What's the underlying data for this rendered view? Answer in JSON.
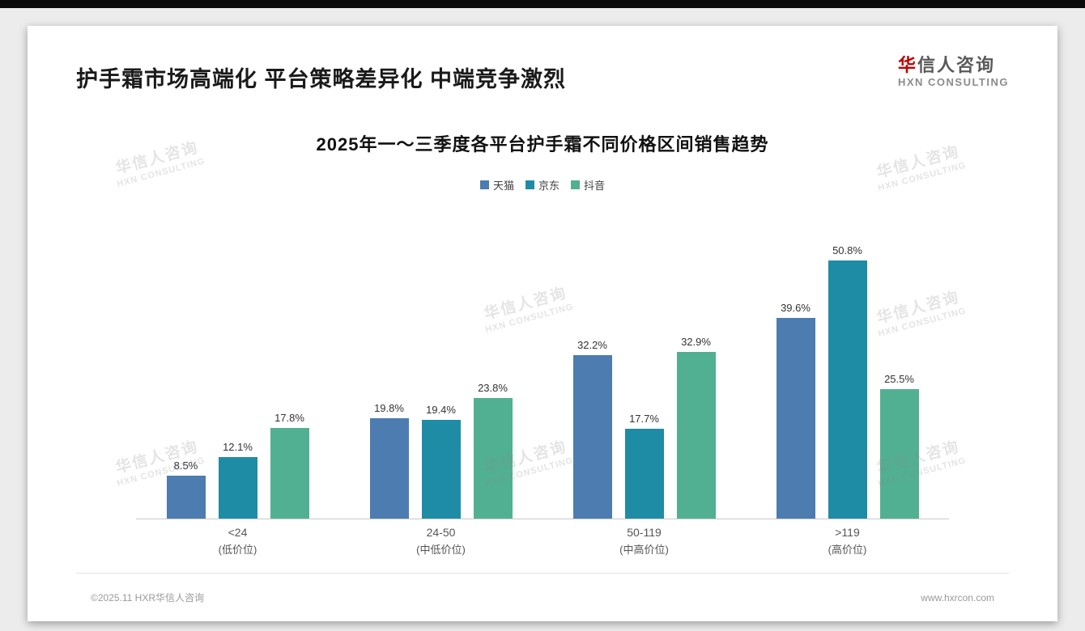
{
  "page": {
    "bg_color": "#ececec",
    "top_bar_color": "#0a0a0a"
  },
  "header": {
    "title": "护手霜市场高端化 平台策略差异化 中端竞争激烈",
    "logo": {
      "cn": "华信人咨询",
      "en": "HXN CONSULTING",
      "accent_color": "#c00000"
    }
  },
  "watermark": {
    "cn": "华信人咨询",
    "en": "HXN CONSULTING"
  },
  "chart_data": {
    "type": "bar",
    "title": "2025年一～三季度各平台护手霜不同价格区间销售趋势",
    "categories": [
      "<24",
      "24-50",
      "50-119",
      ">119"
    ],
    "category_sublabels": [
      "(低价位)",
      "(中低价位)",
      "(中高价位)",
      "(高价位)"
    ],
    "series": [
      {
        "name": "天猫",
        "color": "#4c7cb0",
        "values": [
          8.5,
          19.8,
          32.2,
          39.6
        ]
      },
      {
        "name": "京东",
        "color": "#1f8ca6",
        "values": [
          12.1,
          19.4,
          17.7,
          50.8
        ]
      },
      {
        "name": "抖音",
        "color": "#52b092",
        "values": [
          17.8,
          23.8,
          32.9,
          25.5
        ]
      }
    ],
    "value_suffix": "%",
    "ylim": [
      0,
      55
    ],
    "legend_position": "top",
    "grid": false,
    "xlabel": "",
    "ylabel": ""
  },
  "footer": {
    "left": "©2025.11 HXR华信人咨询",
    "right": "www.hxrcon.com"
  }
}
